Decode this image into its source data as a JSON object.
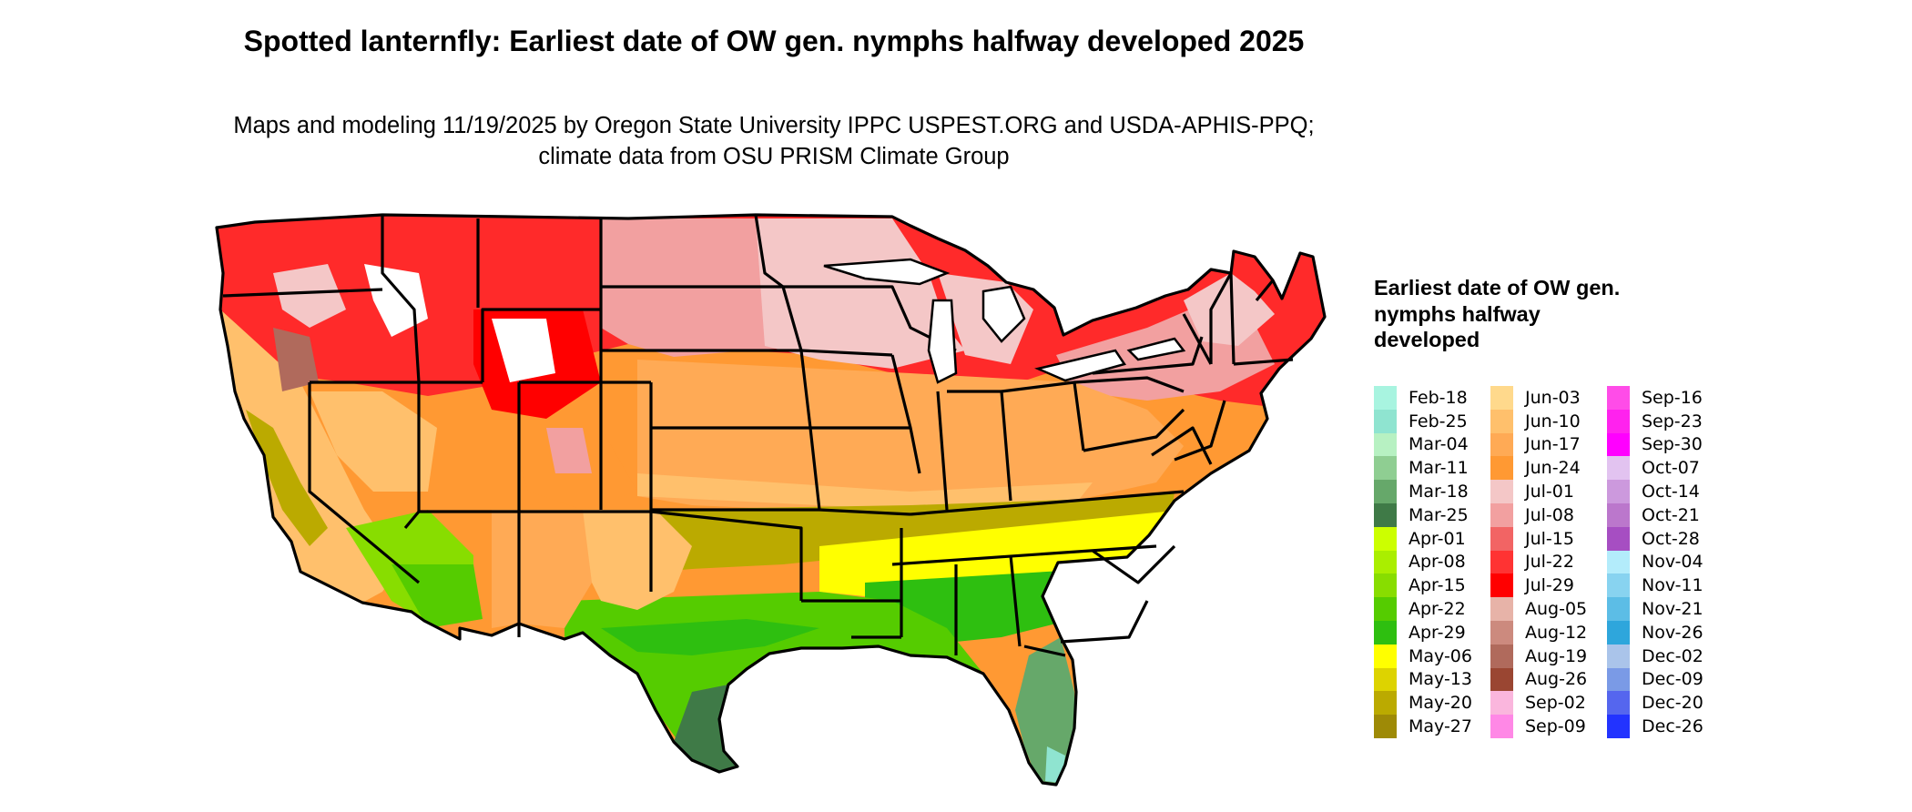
{
  "title": "Spotted lanternfly: Earliest date of OW gen. nymphs halfway developed 2025",
  "subtitle": "Maps and modeling 11/19/2025 by Oregon State University IPPC USPEST.ORG and USDA-APHIS-PPQ; climate data from OSU PRISM Climate Group",
  "legend": {
    "title": "Earliest date of OW gen. nymphs halfway developed",
    "items": [
      {
        "label": "Feb-18",
        "color": "#a8f4e0"
      },
      {
        "label": "Feb-25",
        "color": "#8fe4d0"
      },
      {
        "label": "Mar-04",
        "color": "#b7f1c2"
      },
      {
        "label": "Mar-11",
        "color": "#8fce92"
      },
      {
        "label": "Mar-18",
        "color": "#66a86a"
      },
      {
        "label": "Mar-25",
        "color": "#3f7a47"
      },
      {
        "label": "Apr-01",
        "color": "#ccff00"
      },
      {
        "label": "Apr-08",
        "color": "#aaee00"
      },
      {
        "label": "Apr-15",
        "color": "#88dd00"
      },
      {
        "label": "Apr-22",
        "color": "#55cc00"
      },
      {
        "label": "Apr-29",
        "color": "#2ebf10"
      },
      {
        "label": "May-06",
        "color": "#ffff00"
      },
      {
        "label": "May-13",
        "color": "#ddd300"
      },
      {
        "label": "May-20",
        "color": "#bbaa00"
      },
      {
        "label": "May-27",
        "color": "#9e8a06"
      },
      {
        "label": "Jun-03",
        "color": "#ffd98c"
      },
      {
        "label": "Jun-10",
        "color": "#ffc06c"
      },
      {
        "label": "Jun-17",
        "color": "#ffaa55"
      },
      {
        "label": "Jun-24",
        "color": "#ff9933"
      },
      {
        "label": "Jul-01",
        "color": "#f4c7c7"
      },
      {
        "label": "Jul-08",
        "color": "#f2a0a0"
      },
      {
        "label": "Jul-15",
        "color": "#f26464"
      },
      {
        "label": "Jul-22",
        "color": "#ff3333"
      },
      {
        "label": "Jul-29",
        "color": "#ff0000"
      },
      {
        "label": "Aug-05",
        "color": "#e7b3a8"
      },
      {
        "label": "Aug-12",
        "color": "#cc8a7e"
      },
      {
        "label": "Aug-19",
        "color": "#b06a5c"
      },
      {
        "label": "Aug-26",
        "color": "#9a4632"
      },
      {
        "label": "Sep-02",
        "color": "#fab6dd"
      },
      {
        "label": "Sep-09",
        "color": "#ff88e6"
      },
      {
        "label": "Sep-16",
        "color": "#ff4ce8"
      },
      {
        "label": "Sep-23",
        "color": "#ff22ee"
      },
      {
        "label": "Sep-30",
        "color": "#ff00ff"
      },
      {
        "label": "Oct-07",
        "color": "#e2c3f0"
      },
      {
        "label": "Oct-14",
        "color": "#cc99dd"
      },
      {
        "label": "Oct-21",
        "color": "#bb77cc"
      },
      {
        "label": "Oct-28",
        "color": "#a64ec2"
      },
      {
        "label": "Nov-04",
        "color": "#b3ecfb"
      },
      {
        "label": "Nov-11",
        "color": "#88d3f0"
      },
      {
        "label": "Nov-21",
        "color": "#5cbde6"
      },
      {
        "label": "Nov-26",
        "color": "#2ea6dc"
      },
      {
        "label": "Dec-02",
        "color": "#aac4ea"
      },
      {
        "label": "Dec-09",
        "color": "#7a9ae6"
      },
      {
        "label": "Dec-20",
        "color": "#5566ee"
      },
      {
        "label": "Dec-26",
        "color": "#2233ff"
      }
    ]
  },
  "map_colors": {
    "west_mountains": "#ff2a2a",
    "northern_plains": "#f2a0a0",
    "upper_midwest": "#f4c7c7",
    "central": "#ffaa55",
    "southwest": "#ffc06c",
    "mid_south": "#bbaa00",
    "gulf": "#55cc00",
    "southeast_band": "#ffff00",
    "florida": "#66a86a",
    "high_elevation": "#ffffff",
    "california_valley": "#bbaa00",
    "desert": "#88dd00"
  }
}
